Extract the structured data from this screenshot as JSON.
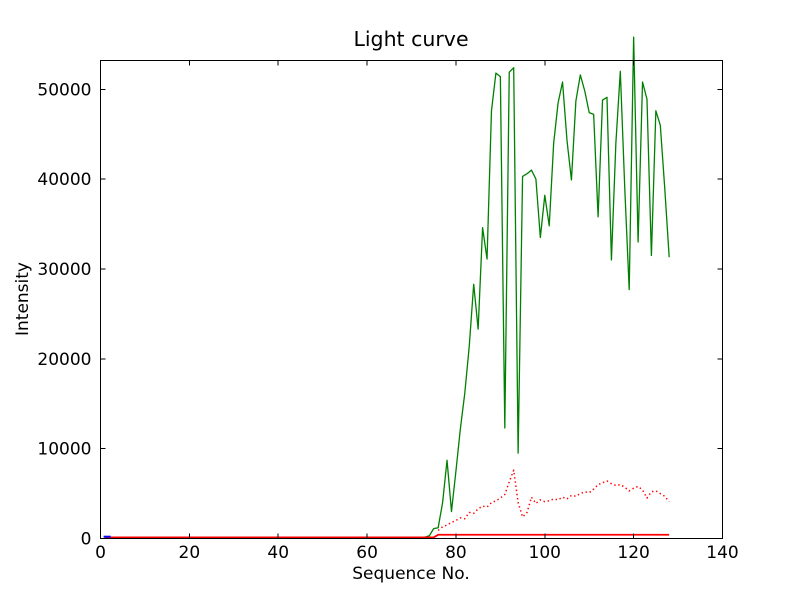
{
  "figure": {
    "background": "#ffffff",
    "spine_color": "#000000",
    "tick_direction": "in"
  },
  "chart_data": {
    "type": "line",
    "title": "Light curve",
    "xlabel": "Sequence No.",
    "ylabel": "Intensity",
    "xlim": [
      0,
      140
    ],
    "ylim": [
      0,
      53200
    ],
    "xticks": [
      0,
      20,
      40,
      60,
      80,
      100,
      120,
      140
    ],
    "yticks": [
      0,
      10000,
      20000,
      30000,
      40000,
      50000
    ],
    "grid": false,
    "legend": false,
    "series": [
      {
        "id": "green-solid-main-lightcurve",
        "color": "#008000",
        "style": "solid",
        "lw": 1.3,
        "x_start": 1,
        "y": [
          60,
          60,
          60,
          60,
          60,
          60,
          60,
          60,
          60,
          60,
          60,
          60,
          60,
          60,
          60,
          60,
          60,
          60,
          60,
          60,
          60,
          60,
          60,
          60,
          60,
          60,
          60,
          60,
          60,
          60,
          60,
          60,
          60,
          60,
          60,
          60,
          60,
          60,
          60,
          60,
          60,
          60,
          60,
          60,
          60,
          60,
          60,
          60,
          60,
          60,
          60,
          60,
          60,
          60,
          60,
          60,
          60,
          60,
          60,
          60,
          60,
          60,
          60,
          60,
          60,
          60,
          60,
          60,
          60,
          60,
          60,
          60,
          150,
          300,
          1100,
          1200,
          4000,
          8700,
          3000,
          7500,
          12200,
          16200,
          21400,
          28300,
          23300,
          34600,
          31100,
          47600,
          51800,
          51400,
          12300,
          51900,
          52400,
          9500,
          40300,
          40600,
          41000,
          40000,
          33500,
          38200,
          34800,
          44000,
          48500,
          50800,
          44300,
          39900,
          48700,
          51600,
          49800,
          47400,
          47200,
          35800,
          48800,
          49100,
          31000,
          44000,
          52000,
          39000,
          27700,
          55800,
          33000,
          50800,
          48900,
          31500,
          47600,
          46000,
          39000,
          31300
        ]
      },
      {
        "id": "red-dotted-comparison",
        "color": "#ff0000",
        "style": "dotted",
        "lw": 1.5,
        "x_start": 76,
        "y": [
          900,
          1300,
          1500,
          1800,
          2000,
          2300,
          2200,
          2900,
          2800,
          3300,
          3600,
          3500,
          4000,
          4200,
          4500,
          4900,
          6300,
          7600,
          4000,
          2400,
          2900,
          4600,
          3900,
          4300,
          4100,
          4200,
          4400,
          4300,
          4600,
          4400,
          4800,
          4700,
          5000,
          5200,
          5100,
          5500,
          6000,
          6200,
          6400,
          6100,
          5900,
          6000,
          5700,
          5300,
          5600,
          5800,
          5400,
          4500,
          5200,
          5300,
          5000,
          4700,
          4100
        ]
      },
      {
        "id": "red-solid-baseline",
        "color": "#ff0000",
        "style": "solid",
        "lw": 1.8,
        "x_start": 1,
        "y": [
          120,
          120,
          120,
          120,
          120,
          120,
          120,
          120,
          120,
          120,
          120,
          120,
          120,
          120,
          120,
          120,
          120,
          120,
          120,
          120,
          120,
          120,
          120,
          120,
          120,
          120,
          120,
          120,
          120,
          120,
          120,
          120,
          120,
          120,
          120,
          120,
          120,
          120,
          120,
          120,
          120,
          120,
          120,
          120,
          120,
          120,
          120,
          120,
          120,
          120,
          120,
          120,
          120,
          120,
          120,
          120,
          120,
          120,
          120,
          120,
          120,
          120,
          120,
          120,
          120,
          120,
          120,
          120,
          120,
          120,
          120,
          120,
          120,
          120,
          120,
          420,
          420,
          420,
          420,
          420,
          420,
          420,
          420,
          420,
          420,
          420,
          420,
          420,
          420,
          420,
          420,
          420,
          420,
          420,
          420,
          420,
          420,
          420,
          420,
          420,
          420,
          420,
          420,
          420,
          420,
          420,
          420,
          420,
          420,
          420,
          420,
          420,
          420,
          420,
          420,
          420,
          420,
          420,
          420,
          420,
          420,
          420,
          420,
          420,
          420,
          420,
          420,
          420
        ]
      },
      {
        "id": "blue-solid-start-segment",
        "color": "#0000ff",
        "style": "solid",
        "lw": 2,
        "x": [
          0.7,
          2.3
        ],
        "y": [
          200,
          200
        ]
      }
    ]
  }
}
